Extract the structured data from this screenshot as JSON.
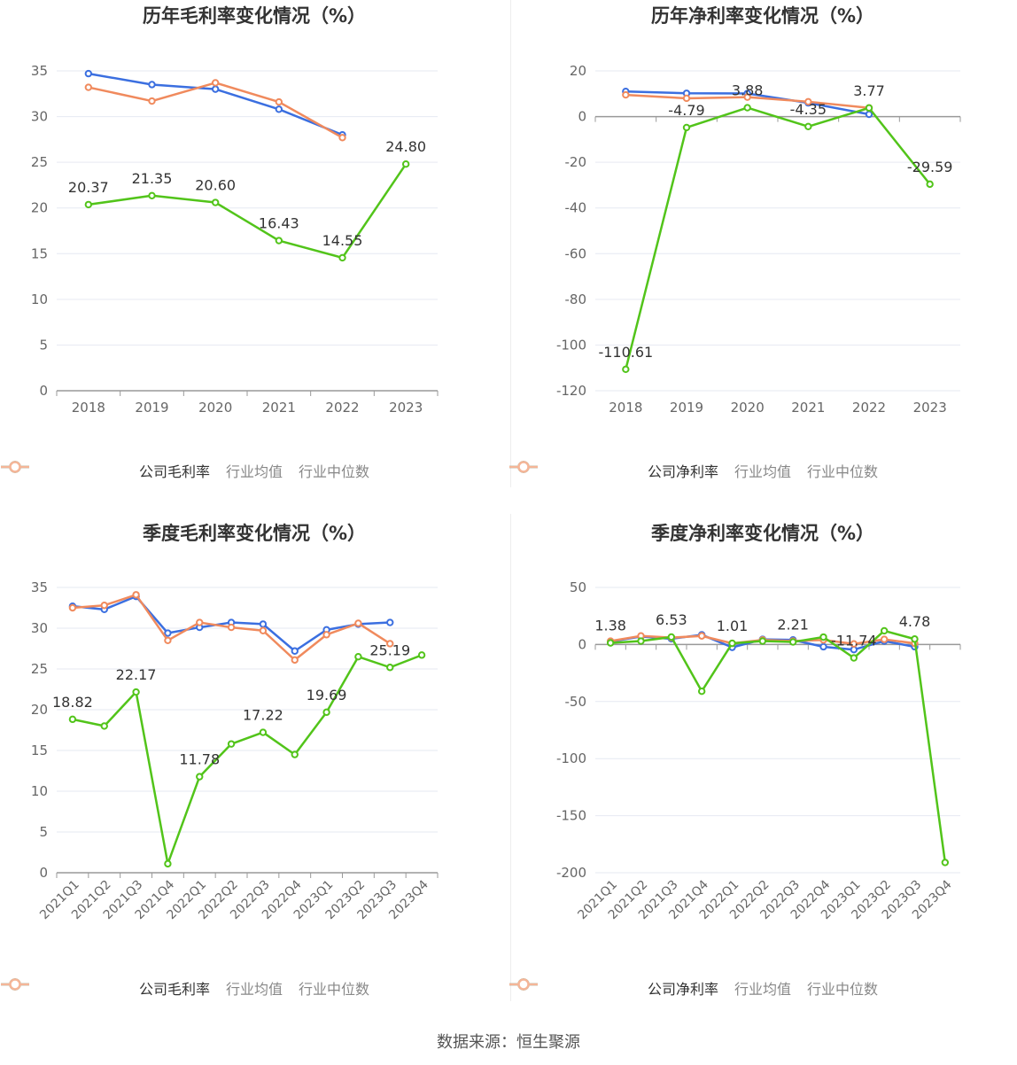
{
  "colors": {
    "company": "#52c41a",
    "avg": "#3b6fe0",
    "median": "#f08a5d",
    "grid": "#e6e9f2",
    "axis": "#999999"
  },
  "source": "数据来源：恒生聚源",
  "chart_data": [
    {
      "type": "line",
      "title": "历年毛利率变化情况（%）",
      "categories": [
        "2018",
        "2019",
        "2020",
        "2021",
        "2022",
        "2023"
      ],
      "ylim": [
        0,
        35
      ],
      "yticks": [
        0,
        5,
        10,
        15,
        20,
        25,
        30,
        35
      ],
      "grid": true,
      "legend": "bottom",
      "series": [
        {
          "name": "公司毛利率",
          "color": "#52c41a",
          "values": [
            20.37,
            21.35,
            20.6,
            16.43,
            14.55,
            24.8
          ],
          "labels": [
            "20.37",
            "21.35",
            "20.60",
            "16.43",
            "14.55",
            "24.80"
          ]
        },
        {
          "name": "行业均值",
          "color": "#3b6fe0",
          "values": [
            34.7,
            33.5,
            33.0,
            30.8,
            28.0,
            null
          ]
        },
        {
          "name": "行业中位数",
          "color": "#f08a5d",
          "values": [
            33.2,
            31.7,
            33.7,
            31.6,
            27.7,
            null
          ]
        }
      ]
    },
    {
      "type": "line",
      "title": "历年净利率变化情况（%）",
      "categories": [
        "2018",
        "2019",
        "2020",
        "2021",
        "2022",
        "2023"
      ],
      "ylim": [
        -120,
        20
      ],
      "yticks": [
        -120,
        -100,
        -80,
        -60,
        -40,
        -20,
        0,
        20
      ],
      "grid": true,
      "legend": "bottom",
      "series": [
        {
          "name": "公司净利率",
          "color": "#52c41a",
          "values": [
            -110.61,
            -4.79,
            3.88,
            -4.35,
            3.77,
            -29.59
          ],
          "labels": [
            "-110.61",
            "-4.79",
            "3.88",
            "-4.35",
            "3.77",
            "-29.59"
          ]
        },
        {
          "name": "行业均值",
          "color": "#3b6fe0",
          "values": [
            11.0,
            10.2,
            10.1,
            6.0,
            1.0,
            null
          ]
        },
        {
          "name": "行业中位数",
          "color": "#f08a5d",
          "values": [
            9.5,
            8.0,
            8.5,
            6.5,
            3.8,
            null
          ]
        }
      ]
    },
    {
      "type": "line",
      "title": "季度毛利率变化情况（%）",
      "categories": [
        "2021Q1",
        "2021Q2",
        "2021Q3",
        "2021Q4",
        "2022Q1",
        "2022Q2",
        "2022Q3",
        "2022Q4",
        "2023Q1",
        "2023Q2",
        "2023Q3",
        "2023Q4"
      ],
      "ylim": [
        0,
        35
      ],
      "yticks": [
        0,
        5,
        10,
        15,
        20,
        25,
        30,
        35
      ],
      "grid": true,
      "legend": "bottom",
      "rotate_labels": true,
      "series": [
        {
          "name": "公司毛利率",
          "color": "#52c41a",
          "values": [
            18.82,
            18.0,
            22.17,
            1.1,
            11.78,
            15.8,
            17.22,
            14.5,
            19.69,
            26.5,
            25.19,
            26.7
          ],
          "labels": [
            "18.82",
            "",
            "22.17",
            "",
            "11.78",
            "",
            "17.22",
            "",
            "19.69",
            "",
            "25.19",
            ""
          ]
        },
        {
          "name": "行业均值",
          "color": "#3b6fe0",
          "values": [
            32.7,
            32.3,
            33.9,
            29.4,
            30.1,
            30.7,
            30.5,
            27.2,
            29.8,
            30.5,
            30.7,
            null
          ]
        },
        {
          "name": "行业中位数",
          "color": "#f08a5d",
          "values": [
            32.5,
            32.8,
            34.1,
            28.5,
            30.7,
            30.1,
            29.7,
            26.1,
            29.2,
            30.6,
            28.1,
            null
          ]
        }
      ]
    },
    {
      "type": "line",
      "title": "季度净利率变化情况（%）",
      "categories": [
        "2021Q1",
        "2021Q2",
        "2021Q3",
        "2021Q4",
        "2022Q1",
        "2022Q2",
        "2022Q3",
        "2022Q4",
        "2023Q1",
        "2023Q2",
        "2023Q3",
        "2023Q4"
      ],
      "ylim": [
        -200,
        50
      ],
      "yticks": [
        -200,
        -150,
        -100,
        -50,
        0,
        50
      ],
      "grid": true,
      "legend": "bottom",
      "rotate_labels": true,
      "series": [
        {
          "name": "公司净利率",
          "color": "#52c41a",
          "values": [
            1.38,
            3.0,
            6.53,
            -41.0,
            1.01,
            3.0,
            2.21,
            6.5,
            -11.74,
            12.0,
            4.78,
            -191.0
          ],
          "labels": [
            "1.38",
            "",
            "6.53",
            "",
            "1.01",
            "",
            "2.21",
            "",
            "-11.74",
            "",
            "4.78",
            ""
          ]
        },
        {
          "name": "行业均值",
          "color": "#3b6fe0",
          "values": [
            2.5,
            7.0,
            5.0,
            8.5,
            -2.5,
            4.5,
            4.0,
            -2.0,
            -4.5,
            3.0,
            -2.0,
            null
          ]
        },
        {
          "name": "行业中位数",
          "color": "#f08a5d",
          "values": [
            3.0,
            7.5,
            6.0,
            7.5,
            1.0,
            4.0,
            3.0,
            4.0,
            0.5,
            4.5,
            1.0,
            null
          ]
        }
      ]
    }
  ]
}
